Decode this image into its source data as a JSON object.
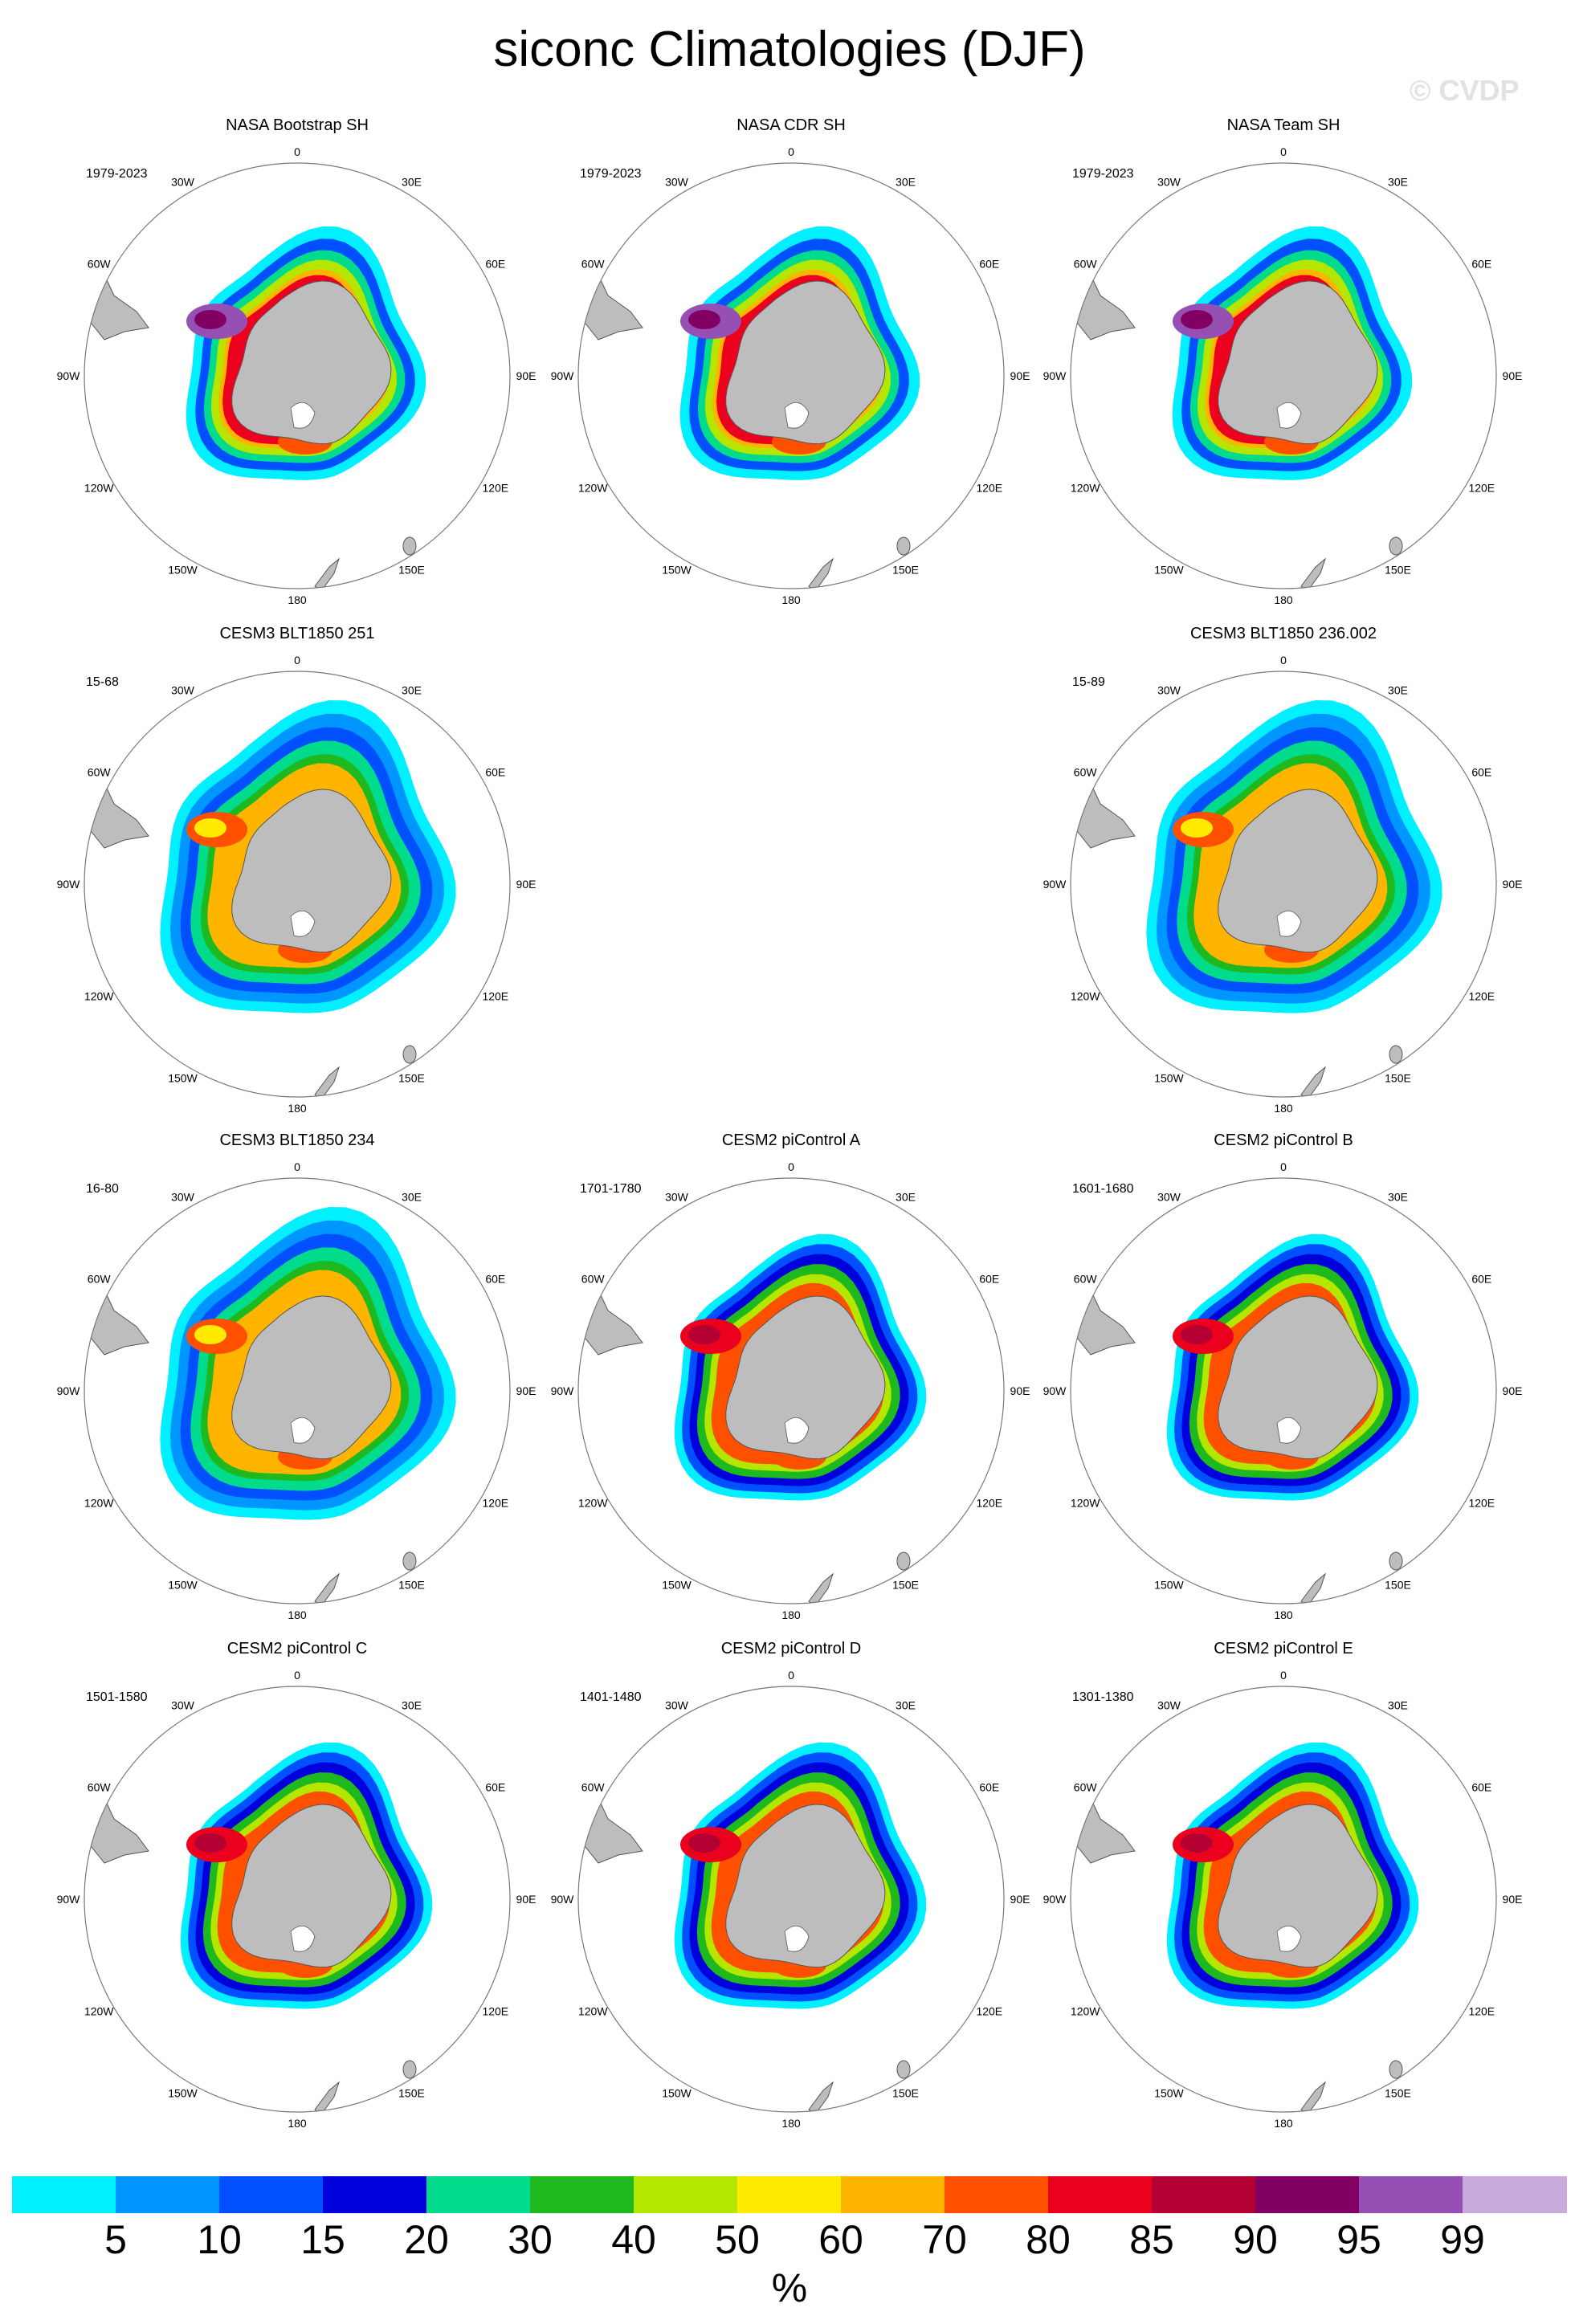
{
  "title": "siconc Climatologies (DJF)",
  "watermark": "© CVDP",
  "lon_labels": [
    "0",
    "30E",
    "60E",
    "90E",
    "120E",
    "150E",
    "180",
    "150W",
    "120W",
    "90W",
    "60W",
    "30W"
  ],
  "colors": {
    "land": "#bdbdbd",
    "ocean": "#ffffff",
    "coast": "#555555",
    "circle": "#777777"
  },
  "panels": [
    {
      "title": "NASA Bootstrap SH",
      "years": "1979-2023",
      "variant": "obs"
    },
    {
      "title": "NASA CDR SH",
      "years": "1979-2023",
      "variant": "obs"
    },
    {
      "title": "NASA Team SH",
      "years": "1979-2023",
      "variant": "obs"
    },
    {
      "title": "CESM3 BLT1850 251",
      "years": "15-68",
      "variant": "cesm3"
    },
    null,
    {
      "title": "CESM3 BLT1850 236.002",
      "years": "15-89",
      "variant": "cesm3"
    },
    {
      "title": "CESM3 BLT1850 234",
      "years": "16-80",
      "variant": "cesm3"
    },
    {
      "title": "CESM2 piControl A",
      "years": "1701-1780",
      "variant": "cesm2"
    },
    {
      "title": "CESM2 piControl B",
      "years": "1601-1680",
      "variant": "cesm2"
    },
    {
      "title": "CESM2 piControl C",
      "years": "1501-1580",
      "variant": "cesm2"
    },
    {
      "title": "CESM2 piControl D",
      "years": "1401-1480",
      "variant": "cesm2"
    },
    {
      "title": "CESM2 piControl E",
      "years": "1301-1380",
      "variant": "cesm2"
    }
  ],
  "colorbar": {
    "unit": "%",
    "labels": [
      "5",
      "10",
      "15",
      "20",
      "30",
      "40",
      "50",
      "60",
      "70",
      "80",
      "85",
      "90",
      "95",
      "99"
    ],
    "colors": [
      "#00f0ff",
      "#0096ff",
      "#0050ff",
      "#0000dc",
      "#00dc8c",
      "#1eb91e",
      "#b4e600",
      "#ffeb00",
      "#ffb400",
      "#ff5000",
      "#eb001e",
      "#b40032",
      "#820064",
      "#9650b4",
      "#c8aadc"
    ]
  }
}
